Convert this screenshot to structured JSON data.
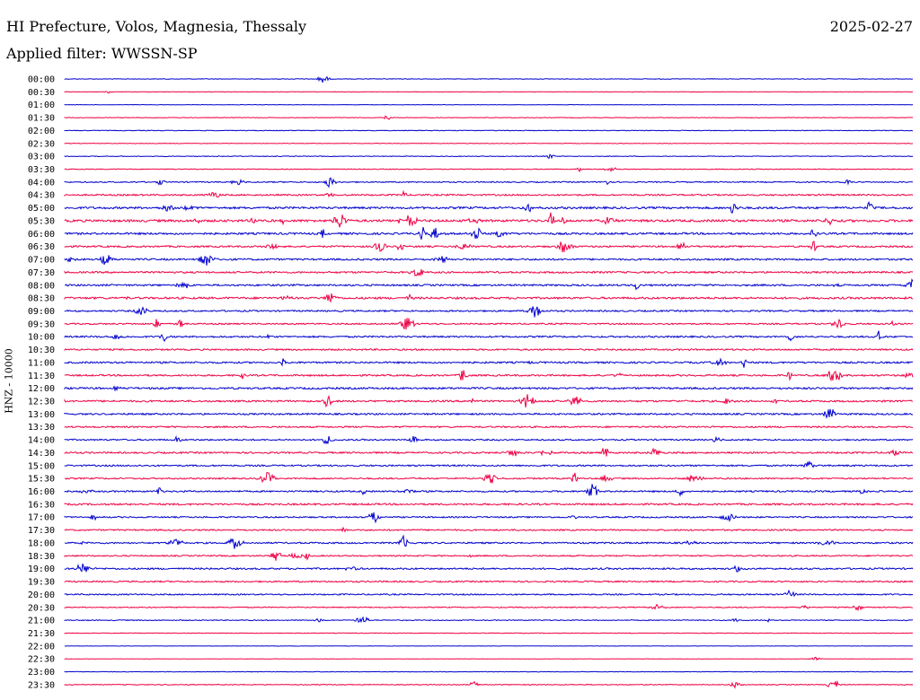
{
  "header": {
    "title": "HI Prefecture, Volos, Magnesia, Thessaly",
    "date": "2025-02-27",
    "filter": "Applied filter: WWSSN-SP"
  },
  "chart_data": {
    "type": "line",
    "ylabel": "HNZ - 10000",
    "colors": [
      "#0000cc",
      "#ee0044"
    ],
    "row_labels": [
      "00:00",
      "00:30",
      "01:00",
      "01:30",
      "02:00",
      "02:30",
      "03:00",
      "03:30",
      "04:00",
      "04:30",
      "05:00",
      "05:30",
      "06:00",
      "06:30",
      "07:00",
      "07:30",
      "08:00",
      "08:30",
      "09:00",
      "09:30",
      "10:00",
      "10:30",
      "11:00",
      "11:30",
      "12:00",
      "12:30",
      "13:00",
      "13:30",
      "14:00",
      "14:30",
      "15:00",
      "15:30",
      "16:00",
      "16:30",
      "17:00",
      "17:30",
      "18:00",
      "18:30",
      "19:00",
      "19:30",
      "20:00",
      "20:30",
      "21:00",
      "21:30",
      "22:00",
      "22:30",
      "23:00",
      "23:30"
    ],
    "noise_levels": [
      0.5,
      0.4,
      0.4,
      0.5,
      0.6,
      0.5,
      0.6,
      0.7,
      1.0,
      1.4,
      1.9,
      2.1,
      1.8,
      1.5,
      1.6,
      1.6,
      1.6,
      1.8,
      1.4,
      1.3,
      1.5,
      1.4,
      1.6,
      1.5,
      1.7,
      1.6,
      1.5,
      1.4,
      1.3,
      1.5,
      1.4,
      1.3,
      1.4,
      1.6,
      1.3,
      1.3,
      1.4,
      1.2,
      1.5,
      1.3,
      1.2,
      0.9,
      0.8,
      0.5,
      0.3,
      0.3,
      0.5,
      0.7
    ]
  }
}
